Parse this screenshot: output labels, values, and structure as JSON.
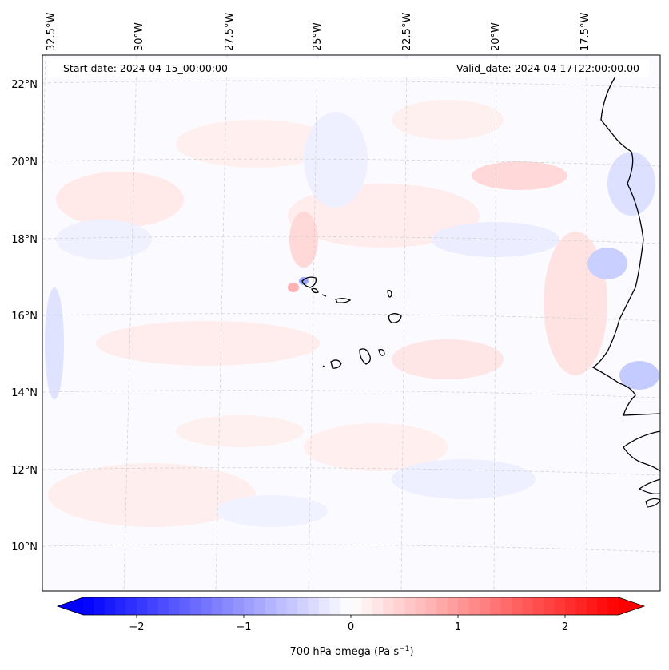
{
  "header": {
    "start_date": "Start date: 2024-04-15_00:00:00",
    "valid_date": "Valid_date: 2024-04-17T22:00:00.00"
  },
  "map": {
    "longitude_labels": [
      "32.5°W",
      "30°W",
      "27.5°W",
      "25°W",
      "22.5°W",
      "20°W",
      "17.5°W"
    ],
    "latitude_labels": [
      "22°N",
      "20°N",
      "18°N",
      "16°N",
      "14°N",
      "12°N",
      "10°N"
    ],
    "field": "700 hPa omega",
    "gridlines": true
  },
  "colorbar": {
    "label_main": "700 hPa omega (Pa s",
    "label_sup": "−1",
    "label_close": ")",
    "ticks": [
      "−2",
      "−1",
      "0",
      "1",
      "2"
    ],
    "tick_values": [
      -2,
      -1,
      0,
      1,
      2
    ],
    "range": [
      -2.5,
      2.5
    ],
    "colormap": "bwr",
    "extend": "both",
    "colors": {
      "negative": "#0000ff",
      "zero": "#ffffff",
      "positive": "#ff0000"
    }
  }
}
